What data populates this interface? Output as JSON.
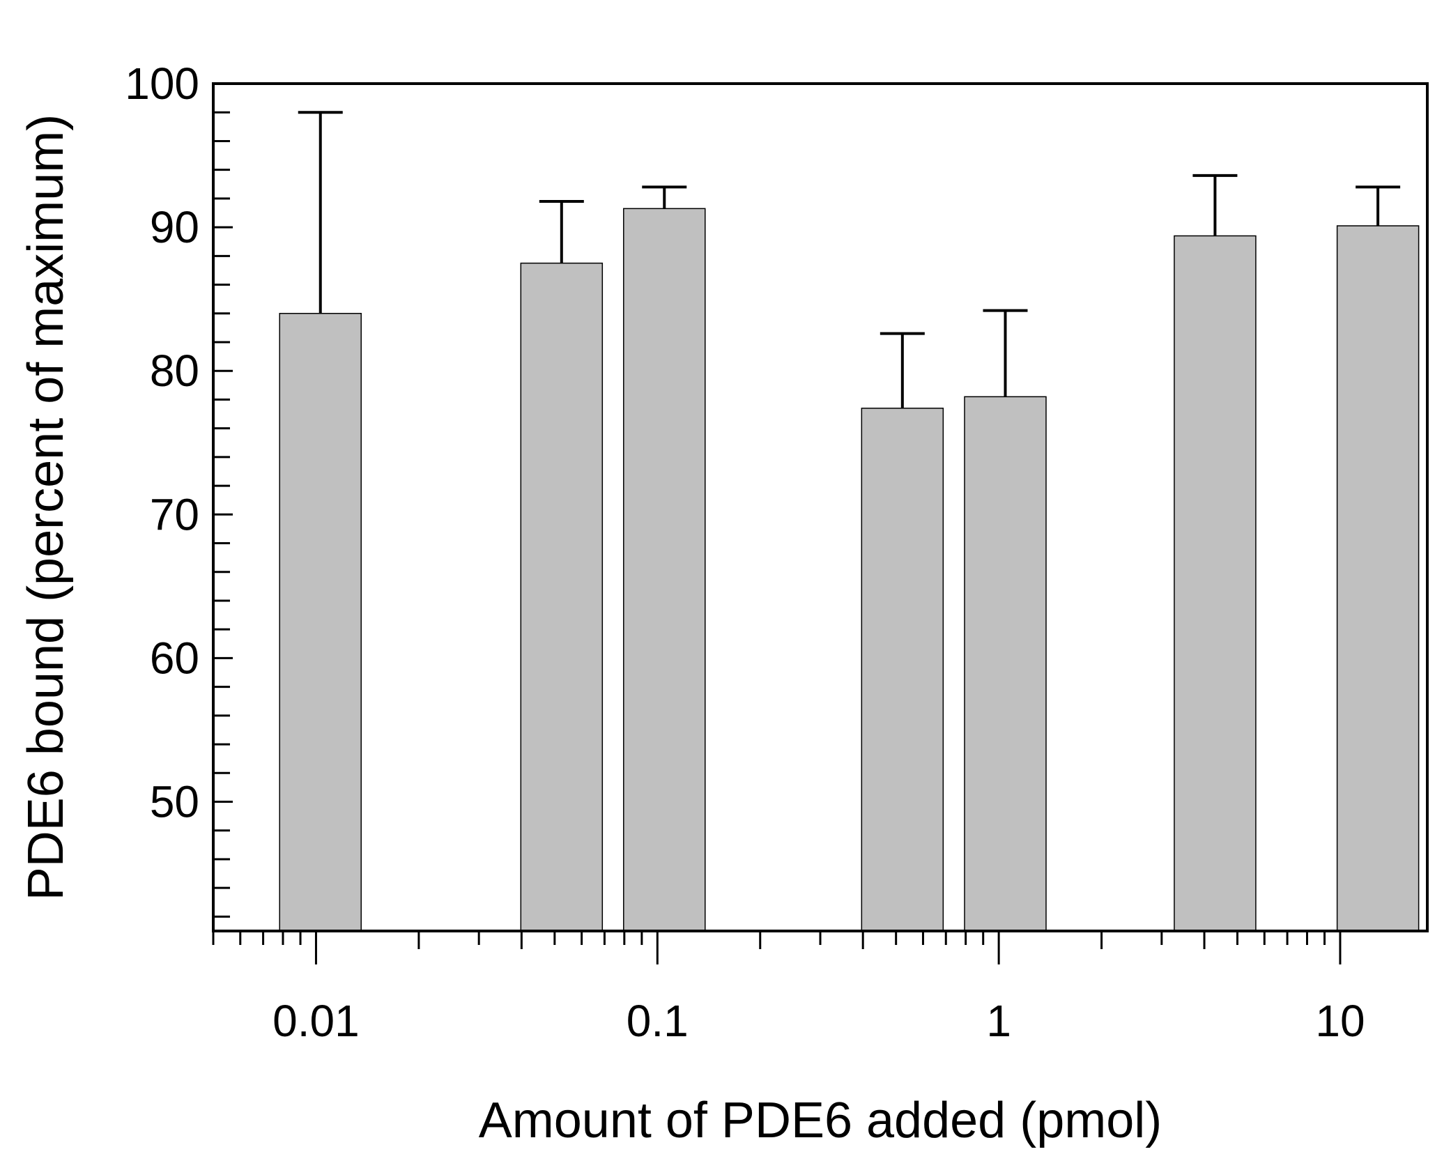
{
  "chart_data": {
    "type": "bar",
    "xlabel": "Amount of PDE6 added (pmol)",
    "ylabel": "PDE6 bound (percent of maximum)",
    "x_scale": "log",
    "xlim": [
      0.005,
      18
    ],
    "ylim": [
      41,
      100
    ],
    "y_ticks_major": [
      50,
      60,
      70,
      80,
      90,
      100
    ],
    "y_ticks_minor_step": 2,
    "x_tick_labels": [
      {
        "value": 0.01,
        "label": "0.01"
      },
      {
        "value": 0.1,
        "label": "0.1"
      },
      {
        "value": 1,
        "label": "1"
      },
      {
        "value": 10,
        "label": "10"
      }
    ],
    "bar_color": "#c0c0c0",
    "grid": false,
    "legend": "none",
    "bars": [
      {
        "x": 0.0103,
        "value": 84.0,
        "error": 14.0
      },
      {
        "x": 0.0524,
        "value": 87.5,
        "error": 4.3
      },
      {
        "x": 0.1048,
        "value": 91.3,
        "error": 1.5
      },
      {
        "x": 0.522,
        "value": 77.4,
        "error": 5.2
      },
      {
        "x": 1.045,
        "value": 78.2,
        "error": 6.0
      },
      {
        "x": 4.3,
        "value": 89.4,
        "error": 4.2
      },
      {
        "x": 12.9,
        "value": 90.1,
        "error": 2.7
      }
    ]
  }
}
